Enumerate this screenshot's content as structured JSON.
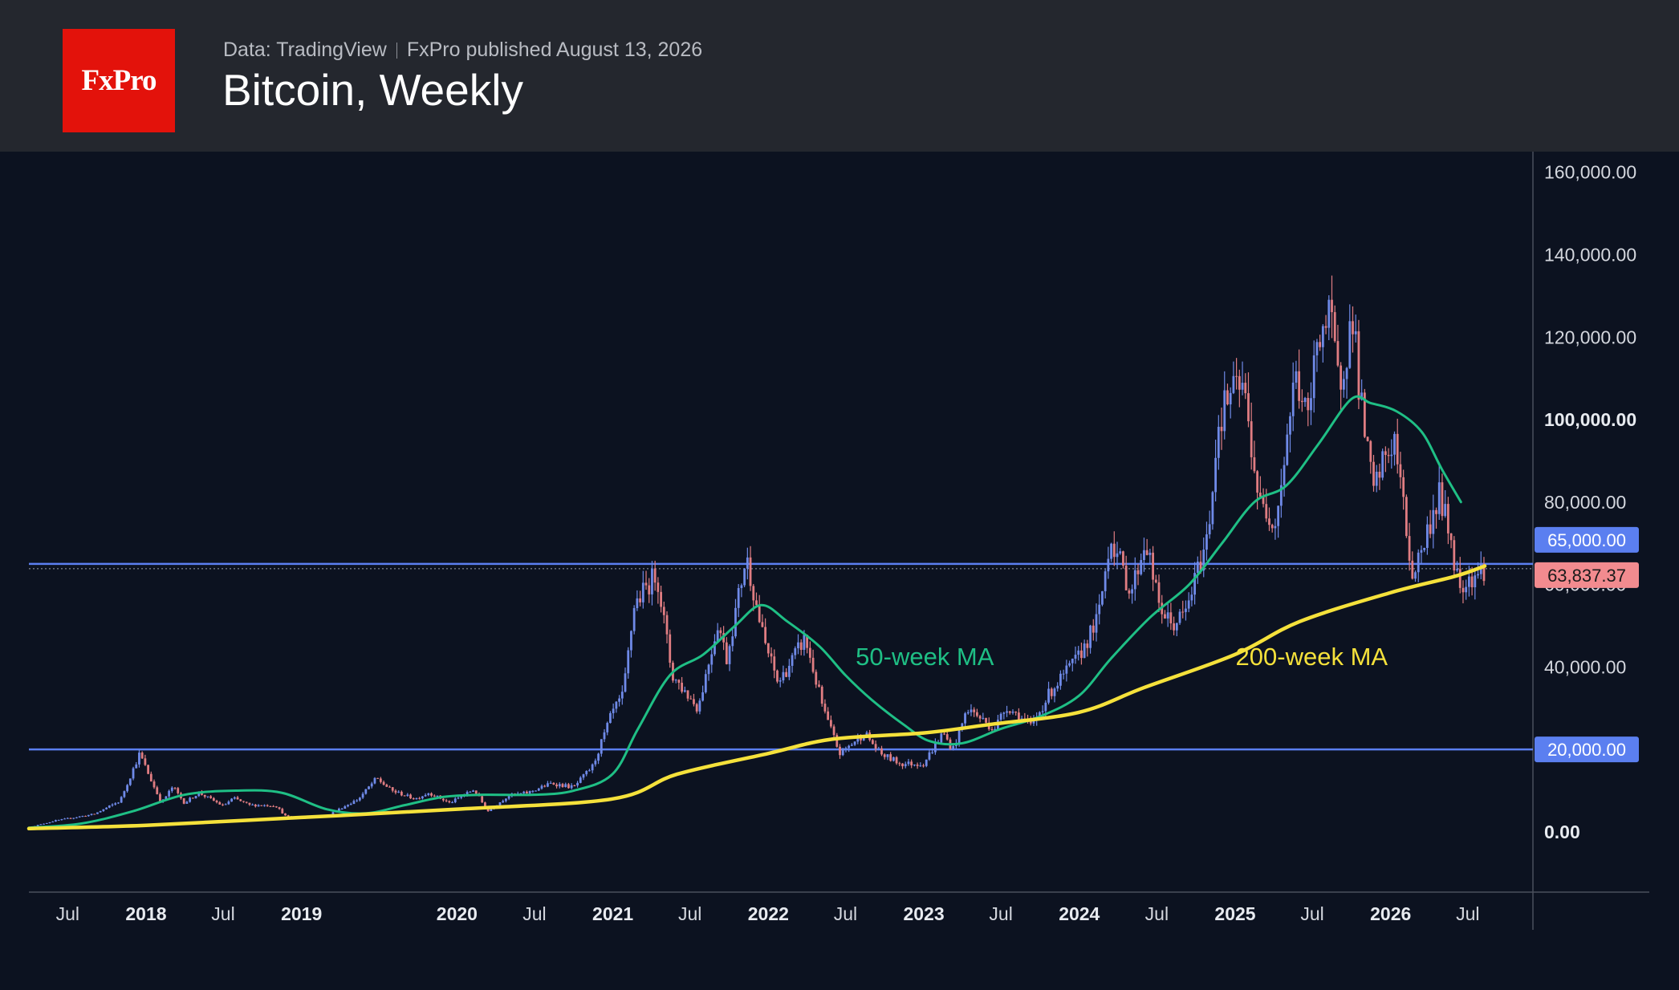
{
  "header": {
    "logo_text": "FxPro",
    "source": "Data: TradingView",
    "published": "FxPro published August 13, 2026",
    "title": "Bitcoin, Weekly"
  },
  "colors": {
    "background": "#0c1220",
    "header_bg": "#24272e",
    "logo_bg": "#e3120b",
    "ma50": "#1fbf85",
    "ma200": "#f5e13b",
    "level_line": "#5b7ff0",
    "candle_up": "#6f8ae8",
    "candle_down": "#e07d82",
    "price_badge": "#f28b8f"
  },
  "chart_data": {
    "type": "candlestick",
    "title": "Bitcoin, Weekly",
    "xlabel": "",
    "ylabel": "",
    "x_range": [
      "2017-04-01",
      "2026-12-01"
    ],
    "ylim": [
      -15000,
      165000
    ],
    "y_ticks": [
      {
        "value": 160000,
        "label": "160,000.00",
        "bold": false
      },
      {
        "value": 140000,
        "label": "140,000.00",
        "bold": false
      },
      {
        "value": 120000,
        "label": "120,000.00",
        "bold": false
      },
      {
        "value": 100000,
        "label": "100,000.00",
        "bold": true
      },
      {
        "value": 80000,
        "label": "80,000.00",
        "bold": false
      },
      {
        "value": 60000,
        "label": "60,000.00",
        "bold": false
      },
      {
        "value": 40000,
        "label": "40,000.00",
        "bold": false
      },
      {
        "value": 0,
        "label": "0.00",
        "bold": true
      }
    ],
    "x_ticks": [
      {
        "date": "2017-07-01",
        "label": "Jul",
        "bold": false
      },
      {
        "date": "2018-01-01",
        "label": "2018",
        "bold": true
      },
      {
        "date": "2018-07-01",
        "label": "Jul",
        "bold": false
      },
      {
        "date": "2019-01-01",
        "label": "2019",
        "bold": true
      },
      {
        "date": "2020-01-01",
        "label": "2020",
        "bold": true
      },
      {
        "date": "2020-07-01",
        "label": "Jul",
        "bold": false
      },
      {
        "date": "2021-01-01",
        "label": "2021",
        "bold": true
      },
      {
        "date": "2021-07-01",
        "label": "Jul",
        "bold": false
      },
      {
        "date": "2022-01-01",
        "label": "2022",
        "bold": true
      },
      {
        "date": "2022-07-01",
        "label": "Jul",
        "bold": false
      },
      {
        "date": "2023-01-01",
        "label": "2023",
        "bold": true
      },
      {
        "date": "2023-07-01",
        "label": "Jul",
        "bold": false
      },
      {
        "date": "2024-01-01",
        "label": "2024",
        "bold": true
      },
      {
        "date": "2024-07-01",
        "label": "Jul",
        "bold": false
      },
      {
        "date": "2025-01-01",
        "label": "2025",
        "bold": true
      },
      {
        "date": "2025-07-01",
        "label": "Jul",
        "bold": false
      },
      {
        "date": "2026-01-01",
        "label": "2026",
        "bold": true
      },
      {
        "date": "2026-07-01",
        "label": "Jul",
        "bold": false
      }
    ],
    "horizontal_levels": [
      {
        "value": 65000,
        "label": "65,000.00"
      },
      {
        "value": 20000,
        "label": "20,000.00"
      }
    ],
    "current_price": {
      "value": 63837.37,
      "label": "63,837.37"
    },
    "price_path": [
      [
        "2017-04-01",
        1100
      ],
      [
        "2017-06-01",
        2700
      ],
      [
        "2017-09-01",
        4300
      ],
      [
        "2017-11-01",
        7500
      ],
      [
        "2017-12-17",
        19000
      ],
      [
        "2018-01-15",
        12000
      ],
      [
        "2018-02-06",
        7000
      ],
      [
        "2018-03-05",
        11000
      ],
      [
        "2018-04-01",
        7000
      ],
      [
        "2018-05-05",
        9500
      ],
      [
        "2018-07-01",
        6300
      ],
      [
        "2018-07-25",
        8200
      ],
      [
        "2018-09-01",
        6500
      ],
      [
        "2018-11-01",
        6400
      ],
      [
        "2018-11-25",
        3800
      ],
      [
        "2018-12-15",
        3300
      ],
      [
        "2019-03-01",
        3900
      ],
      [
        "2019-05-15",
        8000
      ],
      [
        "2019-06-26",
        13000
      ],
      [
        "2019-08-01",
        10000
      ],
      [
        "2019-09-25",
        8000
      ],
      [
        "2019-10-27",
        9500
      ],
      [
        "2019-12-15",
        7000
      ],
      [
        "2020-02-10",
        10300
      ],
      [
        "2020-03-13",
        5000
      ],
      [
        "2020-05-01",
        8800
      ],
      [
        "2020-06-15",
        9500
      ],
      [
        "2020-08-10",
        11800
      ],
      [
        "2020-10-01",
        10800
      ],
      [
        "2020-11-15",
        16000
      ],
      [
        "2020-12-31",
        29000
      ],
      [
        "2021-01-25",
        33000
      ],
      [
        "2021-02-20",
        55000
      ],
      [
        "2021-04-14",
        63000
      ],
      [
        "2021-05-20",
        38000
      ],
      [
        "2021-07-20",
        30000
      ],
      [
        "2021-09-05",
        51000
      ],
      [
        "2021-09-25",
        42000
      ],
      [
        "2021-11-10",
        67000
      ],
      [
        "2021-12-20",
        47000
      ],
      [
        "2022-01-24",
        36000
      ],
      [
        "2022-03-28",
        47000
      ],
      [
        "2022-05-12",
        29000
      ],
      [
        "2022-06-18",
        19000
      ],
      [
        "2022-08-15",
        24000
      ],
      [
        "2022-09-20",
        19000
      ],
      [
        "2022-11-09",
        16500
      ],
      [
        "2022-12-31",
        16600
      ],
      [
        "2023-02-15",
        24000
      ],
      [
        "2023-03-10",
        20000
      ],
      [
        "2023-04-14",
        30000
      ],
      [
        "2023-06-15",
        25000
      ],
      [
        "2023-07-15",
        30500
      ],
      [
        "2023-09-10",
        25500
      ],
      [
        "2023-10-25",
        34000
      ],
      [
        "2023-12-31",
        42500
      ],
      [
        "2024-02-15",
        52000
      ],
      [
        "2024-03-14",
        72000
      ],
      [
        "2024-05-01",
        58000
      ],
      [
        "2024-06-05",
        71000
      ],
      [
        "2024-07-05",
        55000
      ],
      [
        "2024-08-05",
        50000
      ],
      [
        "2024-09-06",
        53000
      ],
      [
        "2024-10-29",
        72000
      ],
      [
        "2024-11-22",
        99000
      ],
      [
        "2024-12-17",
        106000
      ],
      [
        "2025-01-20",
        108000
      ],
      [
        "2025-02-28",
        79000
      ],
      [
        "2025-04-07",
        76000
      ],
      [
        "2025-05-22",
        111000
      ],
      [
        "2025-06-22",
        99000
      ],
      [
        "2025-07-14",
        122000
      ],
      [
        "2025-08-14",
        124000
      ],
      [
        "2025-09-01",
        108000
      ],
      [
        "2025-10-06",
        126000
      ],
      [
        "2025-10-20",
        106000
      ],
      [
        "2025-11-21",
        82000
      ],
      [
        "2025-12-15",
        90000
      ],
      [
        "2026-01-10",
        95000
      ],
      [
        "2026-02-01",
        78000
      ],
      [
        "2026-02-20",
        62000
      ],
      [
        "2026-03-20",
        70000
      ],
      [
        "2026-04-25",
        82000
      ],
      [
        "2026-05-20",
        72000
      ],
      [
        "2026-06-10",
        60000
      ],
      [
        "2026-07-10",
        62000
      ],
      [
        "2026-08-10",
        63837
      ]
    ],
    "series": [
      {
        "name": "50-week MA",
        "color": "#1fbf85",
        "points": [
          [
            "2017-04-01",
            1000
          ],
          [
            "2017-08-01",
            2000
          ],
          [
            "2017-12-01",
            5000
          ],
          [
            "2018-04-01",
            9000
          ],
          [
            "2018-08-01",
            10000
          ],
          [
            "2018-11-15",
            9500
          ],
          [
            "2019-03-01",
            5500
          ],
          [
            "2019-06-01",
            4500
          ],
          [
            "2019-09-01",
            6500
          ],
          [
            "2019-12-01",
            8500
          ],
          [
            "2020-03-01",
            9000
          ],
          [
            "2020-07-01",
            9000
          ],
          [
            "2020-10-01",
            10000
          ],
          [
            "2020-12-31",
            14000
          ],
          [
            "2021-03-01",
            25000
          ],
          [
            "2021-05-15",
            38000
          ],
          [
            "2021-08-01",
            43000
          ],
          [
            "2021-10-15",
            50000
          ],
          [
            "2021-12-15",
            55000
          ],
          [
            "2022-02-15",
            51000
          ],
          [
            "2022-05-01",
            45000
          ],
          [
            "2022-07-01",
            38000
          ],
          [
            "2022-09-01",
            32000
          ],
          [
            "2022-11-15",
            26000
          ],
          [
            "2023-01-15",
            22000
          ],
          [
            "2023-04-01",
            21500
          ],
          [
            "2023-07-01",
            25000
          ],
          [
            "2023-10-01",
            28000
          ],
          [
            "2023-12-31",
            33000
          ],
          [
            "2024-03-15",
            42000
          ],
          [
            "2024-06-15",
            52000
          ],
          [
            "2024-09-15",
            60000
          ],
          [
            "2024-12-01",
            70000
          ],
          [
            "2025-02-15",
            80000
          ],
          [
            "2025-05-01",
            84000
          ],
          [
            "2025-07-15",
            94000
          ],
          [
            "2025-10-01",
            105000
          ],
          [
            "2025-11-15",
            104000
          ],
          [
            "2026-01-15",
            102000
          ],
          [
            "2026-03-15",
            97000
          ],
          [
            "2026-05-01",
            88000
          ],
          [
            "2026-06-15",
            80000
          ]
        ]
      },
      {
        "name": "200-week MA",
        "color": "#f5e13b",
        "points": [
          [
            "2017-04-01",
            800
          ],
          [
            "2018-01-01",
            1600
          ],
          [
            "2019-01-01",
            3500
          ],
          [
            "2020-01-01",
            5500
          ],
          [
            "2020-12-31",
            8000
          ],
          [
            "2021-06-01",
            14000
          ],
          [
            "2021-12-31",
            19000
          ],
          [
            "2022-06-01",
            22500
          ],
          [
            "2022-12-31",
            24000
          ],
          [
            "2023-06-01",
            26000
          ],
          [
            "2023-12-31",
            29000
          ],
          [
            "2024-06-01",
            35000
          ],
          [
            "2024-12-31",
            43000
          ],
          [
            "2025-06-01",
            51000
          ],
          [
            "2025-12-31",
            58000
          ],
          [
            "2026-06-01",
            62000
          ],
          [
            "2026-08-10",
            64500
          ]
        ]
      }
    ],
    "annotations": [
      {
        "text": "50-week MA",
        "color": "#1fbf85",
        "date": "2022-07-25",
        "value": 40500
      },
      {
        "text": "200-week MA",
        "color": "#f5e13b",
        "date": "2025-01-02",
        "value": 40500
      }
    ]
  }
}
